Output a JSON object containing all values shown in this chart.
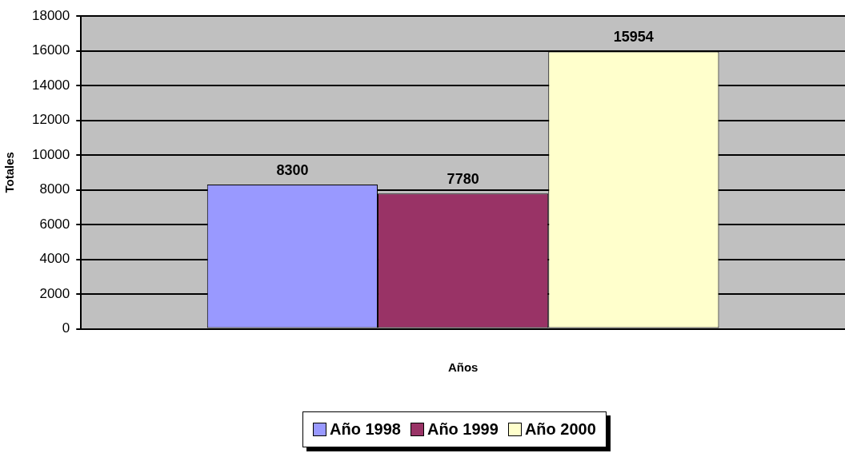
{
  "chart_data": {
    "type": "bar",
    "xlabel": "Años",
    "ylabel": "Totales",
    "categories": [
      null
    ],
    "series": [
      {
        "name": "Año 1998",
        "color": "#9999ff",
        "values": [
          8300
        ]
      },
      {
        "name": "Año 1999",
        "color": "#993366",
        "values": [
          7780
        ]
      },
      {
        "name": "Año 2000",
        "color": "#ffffcc",
        "values": [
          15954
        ]
      }
    ],
    "ylim": [
      0,
      18000
    ],
    "yticks": [
      0,
      2000,
      4000,
      6000,
      8000,
      10000,
      12000,
      14000,
      16000,
      18000
    ],
    "grid": "y",
    "legend": "bottom",
    "data_labels": true
  }
}
